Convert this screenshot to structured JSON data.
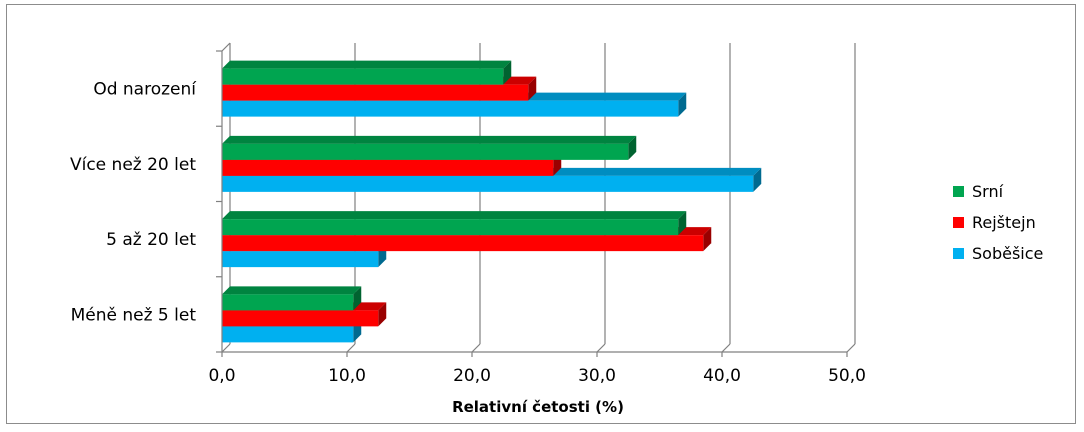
{
  "chart_data": {
    "type": "bar",
    "orientation": "horizontal",
    "style": "3d-clustered",
    "categories": [
      "Od narození",
      "Více než 20 let",
      "5 až 20 let",
      "Méně než 5 let"
    ],
    "series": [
      {
        "name": "Srní",
        "color": "#00a550",
        "values": [
          22.5,
          32.5,
          36.5,
          10.5
        ]
      },
      {
        "name": "Rejštejn",
        "color": "#ff0000",
        "values": [
          24.5,
          26.5,
          38.5,
          12.5
        ]
      },
      {
        "name": "Soběšice",
        "color": "#00b0f0",
        "values": [
          36.5,
          42.5,
          12.5,
          10.5
        ]
      }
    ],
    "xlabel": "Relativní četosti (%)",
    "ylabel": "",
    "xlim": [
      0,
      50
    ],
    "xticks": [
      "0,0",
      "10,0",
      "20,0",
      "30,0",
      "40,0",
      "50,0"
    ],
    "grid": true,
    "legend_position": "right"
  }
}
